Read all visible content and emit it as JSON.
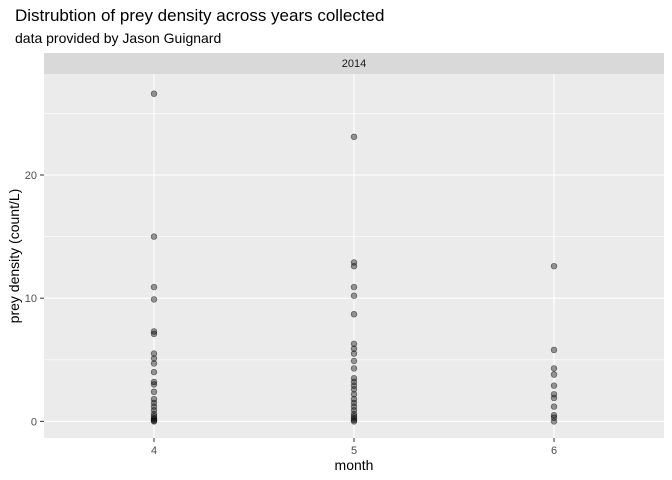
{
  "chart_data": {
    "type": "scatter",
    "title": "Distrubtion of prey density across years collected",
    "subtitle": "data provided by Jason Guignard",
    "panel": "2014",
    "xlabel": "month",
    "ylabel": "prey density (count/L)",
    "x_ticks": [
      "4",
      "5",
      "6"
    ],
    "y_ticks": [
      "0",
      "10",
      "20"
    ],
    "xlim": [
      3.45,
      6.55
    ],
    "ylim": [
      -1.35,
      28.2
    ],
    "grid": true,
    "point_color": "#000000",
    "point_opacity": 0.4,
    "panel_background": "#ebebeb",
    "strip_background": "#d9d9d9",
    "points": [
      {
        "x": 4,
        "y": 26.6
      },
      {
        "x": 4,
        "y": 15.0
      },
      {
        "x": 4,
        "y": 10.9
      },
      {
        "x": 4,
        "y": 9.9
      },
      {
        "x": 4,
        "y": 7.3
      },
      {
        "x": 4,
        "y": 7.1
      },
      {
        "x": 4,
        "y": 5.5
      },
      {
        "x": 4,
        "y": 5.1
      },
      {
        "x": 4,
        "y": 4.7
      },
      {
        "x": 4,
        "y": 4.0
      },
      {
        "x": 4,
        "y": 3.2
      },
      {
        "x": 4,
        "y": 3.0
      },
      {
        "x": 4,
        "y": 2.4
      },
      {
        "x": 4,
        "y": 1.8
      },
      {
        "x": 4,
        "y": 1.5
      },
      {
        "x": 4,
        "y": 1.2
      },
      {
        "x": 4,
        "y": 0.9
      },
      {
        "x": 4,
        "y": 0.6
      },
      {
        "x": 4,
        "y": 0.4
      },
      {
        "x": 4,
        "y": 0.25
      },
      {
        "x": 4,
        "y": 0.15
      },
      {
        "x": 4,
        "y": 0.05
      },
      {
        "x": 4,
        "y": 0.0
      },
      {
        "x": 5,
        "y": 23.1
      },
      {
        "x": 5,
        "y": 12.9
      },
      {
        "x": 5,
        "y": 12.6
      },
      {
        "x": 5,
        "y": 10.9
      },
      {
        "x": 5,
        "y": 10.2
      },
      {
        "x": 5,
        "y": 8.7
      },
      {
        "x": 5,
        "y": 6.3
      },
      {
        "x": 5,
        "y": 5.9
      },
      {
        "x": 5,
        "y": 5.5
      },
      {
        "x": 5,
        "y": 4.9
      },
      {
        "x": 5,
        "y": 4.3
      },
      {
        "x": 5,
        "y": 3.5
      },
      {
        "x": 5,
        "y": 3.2
      },
      {
        "x": 5,
        "y": 2.9
      },
      {
        "x": 5,
        "y": 2.6
      },
      {
        "x": 5,
        "y": 2.2
      },
      {
        "x": 5,
        "y": 1.8
      },
      {
        "x": 5,
        "y": 1.5
      },
      {
        "x": 5,
        "y": 1.2
      },
      {
        "x": 5,
        "y": 0.9
      },
      {
        "x": 5,
        "y": 0.6
      },
      {
        "x": 5,
        "y": 0.4
      },
      {
        "x": 5,
        "y": 0.25
      },
      {
        "x": 5,
        "y": 0.1
      },
      {
        "x": 5,
        "y": 0.0
      },
      {
        "x": 6,
        "y": 12.6
      },
      {
        "x": 6,
        "y": 5.8
      },
      {
        "x": 6,
        "y": 4.3
      },
      {
        "x": 6,
        "y": 3.8
      },
      {
        "x": 6,
        "y": 2.9
      },
      {
        "x": 6,
        "y": 2.2
      },
      {
        "x": 6,
        "y": 1.9
      },
      {
        "x": 6,
        "y": 1.2
      },
      {
        "x": 6,
        "y": 0.5
      },
      {
        "x": 6,
        "y": 0.3
      },
      {
        "x": 6,
        "y": 0.0
      }
    ]
  }
}
